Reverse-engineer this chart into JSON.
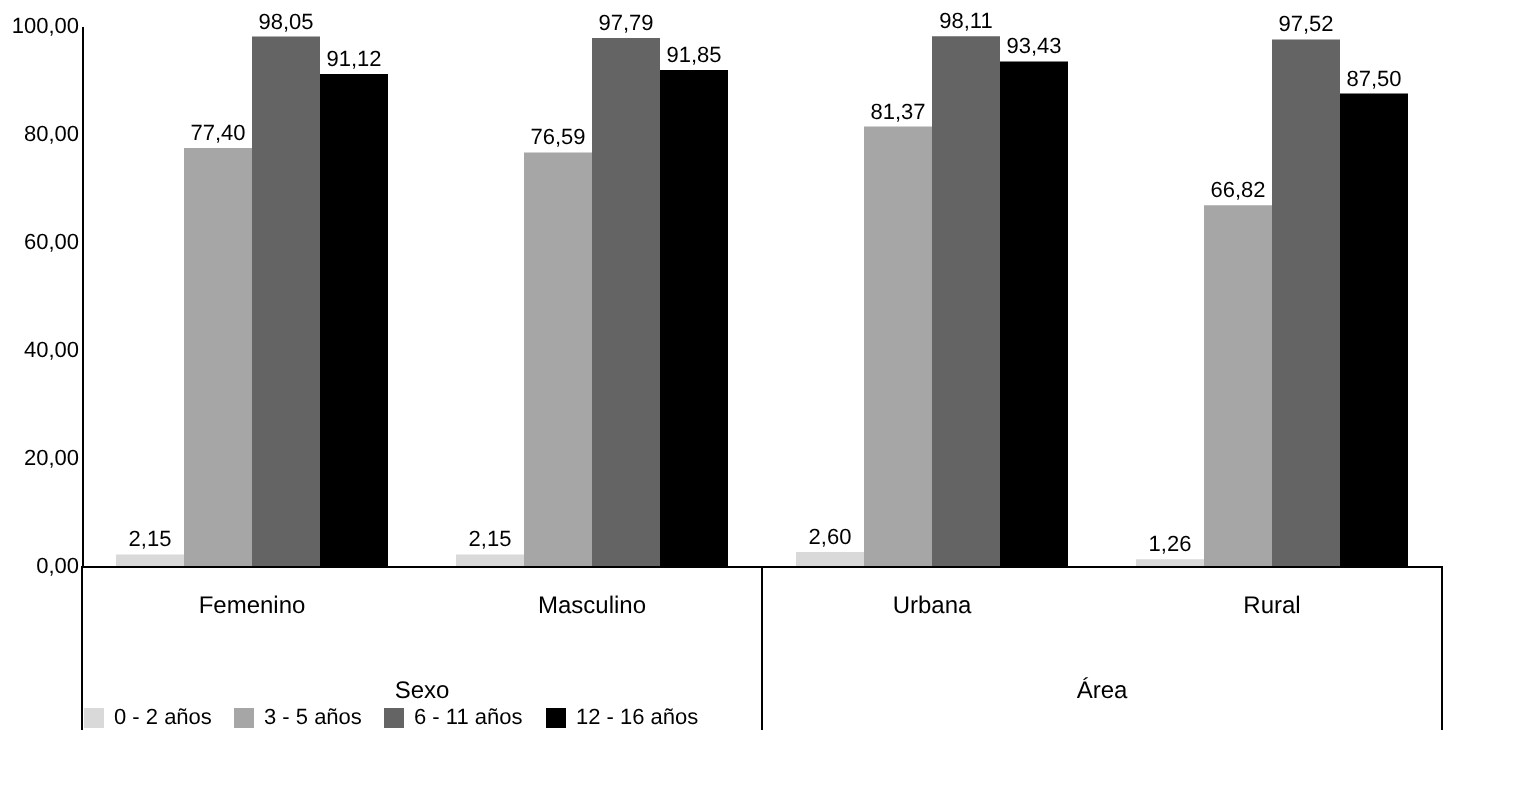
{
  "chart_data": {
    "type": "bar",
    "categories": [
      "Femenino",
      "Masculino",
      "Urbana",
      "Rural"
    ],
    "annotations": [
      "Sexo",
      "Área"
    ],
    "series": [
      {
        "name": "0 - 2 años",
        "color": "#d9d9d9",
        "values": [
          2.15,
          2.15,
          2.6,
          1.26
        ],
        "value_labels": [
          "2,15",
          "2,15",
          "2,60",
          "1,26"
        ]
      },
      {
        "name": "3 - 5 años",
        "color": "#a6a6a6",
        "values": [
          77.4,
          76.59,
          81.37,
          66.82
        ],
        "value_labels": [
          "77,40",
          "76,59",
          "81,37",
          "66,82"
        ]
      },
      {
        "name": "6 - 11 años",
        "color": "#646464",
        "values": [
          98.05,
          97.79,
          98.11,
          97.52
        ],
        "value_labels": [
          "98,05",
          "97,79",
          "98,11",
          "97,52"
        ]
      },
      {
        "name": "12 - 16 años",
        "color": "#000000",
        "values": [
          91.12,
          91.85,
          93.43,
          87.5
        ],
        "value_labels": [
          "91,12",
          "91,85",
          "93,43",
          "87,50"
        ]
      }
    ],
    "ylim": [
      0,
      100
    ],
    "yticks": [
      {
        "value": 0,
        "label": "0,00"
      },
      {
        "value": 20,
        "label": "20,00"
      },
      {
        "value": 40,
        "label": "40,00"
      },
      {
        "value": 60,
        "label": "60,00"
      },
      {
        "value": 80,
        "label": "80,00"
      },
      {
        "value": 100,
        "label": "100,00"
      }
    ],
    "grid": false,
    "legend": "bottom"
  }
}
